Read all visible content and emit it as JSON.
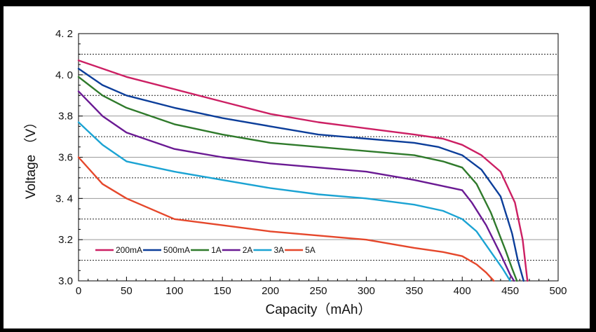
{
  "chart_data": {
    "type": "line",
    "xlabel": "Capacity（mAh）",
    "ylabel": "Voltage （V）",
    "xlim": [
      0,
      500
    ],
    "ylim": [
      3.0,
      4.2
    ],
    "x_ticks": [
      0,
      50,
      100,
      150,
      200,
      250,
      300,
      350,
      400,
      450,
      500
    ],
    "x_tick_labels": [
      "0",
      "50",
      "100",
      "150",
      "200",
      "250",
      "300",
      "350",
      "400",
      "450",
      "500"
    ],
    "y_ticks": [
      3.0,
      3.2,
      3.4,
      3.6,
      3.8,
      4.0,
      4.2
    ],
    "y_tick_labels": [
      "3.0",
      "3.2",
      "3. 4",
      "3.6",
      "3.8",
      "4. 0",
      "4. 2"
    ],
    "grid": {
      "solid_at": [
        3.2,
        3.4,
        3.6,
        3.8,
        4.0
      ],
      "dotted_at": [
        3.1,
        3.3,
        3.5,
        3.7,
        3.9,
        4.1
      ]
    },
    "legend_position": "bottom-left",
    "series": [
      {
        "name": "200mA",
        "color": "#cc1f63",
        "points": [
          [
            0,
            4.07
          ],
          [
            50,
            3.99
          ],
          [
            100,
            3.93
          ],
          [
            150,
            3.87
          ],
          [
            200,
            3.81
          ],
          [
            250,
            3.77
          ],
          [
            300,
            3.74
          ],
          [
            350,
            3.71
          ],
          [
            380,
            3.69
          ],
          [
            400,
            3.66
          ],
          [
            420,
            3.61
          ],
          [
            440,
            3.53
          ],
          [
            455,
            3.38
          ],
          [
            463,
            3.2
          ],
          [
            468,
            3.0
          ]
        ]
      },
      {
        "name": "500mA",
        "color": "#0c3e9a",
        "points": [
          [
            0,
            4.03
          ],
          [
            25,
            3.95
          ],
          [
            50,
            3.9
          ],
          [
            100,
            3.84
          ],
          [
            150,
            3.79
          ],
          [
            200,
            3.75
          ],
          [
            250,
            3.71
          ],
          [
            300,
            3.69
          ],
          [
            350,
            3.67
          ],
          [
            375,
            3.65
          ],
          [
            400,
            3.61
          ],
          [
            420,
            3.54
          ],
          [
            440,
            3.41
          ],
          [
            452,
            3.23
          ],
          [
            458,
            3.1
          ],
          [
            464,
            3.0
          ]
        ]
      },
      {
        "name": "1A",
        "color": "#2f7a2b",
        "points": [
          [
            0,
            3.99
          ],
          [
            25,
            3.9
          ],
          [
            50,
            3.84
          ],
          [
            100,
            3.76
          ],
          [
            150,
            3.71
          ],
          [
            200,
            3.67
          ],
          [
            250,
            3.65
          ],
          [
            300,
            3.63
          ],
          [
            350,
            3.61
          ],
          [
            380,
            3.58
          ],
          [
            400,
            3.55
          ],
          [
            415,
            3.47
          ],
          [
            430,
            3.33
          ],
          [
            445,
            3.15
          ],
          [
            452,
            3.06
          ],
          [
            457,
            3.0
          ]
        ]
      },
      {
        "name": "2A",
        "color": "#6a1a93",
        "points": [
          [
            0,
            3.92
          ],
          [
            25,
            3.8
          ],
          [
            50,
            3.72
          ],
          [
            100,
            3.64
          ],
          [
            150,
            3.6
          ],
          [
            200,
            3.57
          ],
          [
            250,
            3.55
          ],
          [
            300,
            3.53
          ],
          [
            350,
            3.49
          ],
          [
            380,
            3.46
          ],
          [
            400,
            3.44
          ],
          [
            410,
            3.38
          ],
          [
            425,
            3.27
          ],
          [
            440,
            3.13
          ],
          [
            450,
            3.03
          ],
          [
            454,
            3.0
          ]
        ]
      },
      {
        "name": "3A",
        "color": "#1ba3d3",
        "points": [
          [
            0,
            3.77
          ],
          [
            25,
            3.66
          ],
          [
            50,
            3.58
          ],
          [
            100,
            3.53
          ],
          [
            150,
            3.49
          ],
          [
            200,
            3.45
          ],
          [
            250,
            3.42
          ],
          [
            300,
            3.4
          ],
          [
            350,
            3.37
          ],
          [
            380,
            3.34
          ],
          [
            400,
            3.3
          ],
          [
            415,
            3.24
          ],
          [
            430,
            3.14
          ],
          [
            442,
            3.06
          ],
          [
            450,
            3.0
          ]
        ]
      },
      {
        "name": "5A",
        "color": "#e5472b",
        "points": [
          [
            0,
            3.6
          ],
          [
            25,
            3.47
          ],
          [
            50,
            3.4
          ],
          [
            100,
            3.3
          ],
          [
            150,
            3.27
          ],
          [
            200,
            3.24
          ],
          [
            250,
            3.22
          ],
          [
            300,
            3.2
          ],
          [
            350,
            3.16
          ],
          [
            380,
            3.14
          ],
          [
            400,
            3.12
          ],
          [
            415,
            3.08
          ],
          [
            425,
            3.04
          ],
          [
            433,
            3.0
          ]
        ]
      }
    ]
  }
}
